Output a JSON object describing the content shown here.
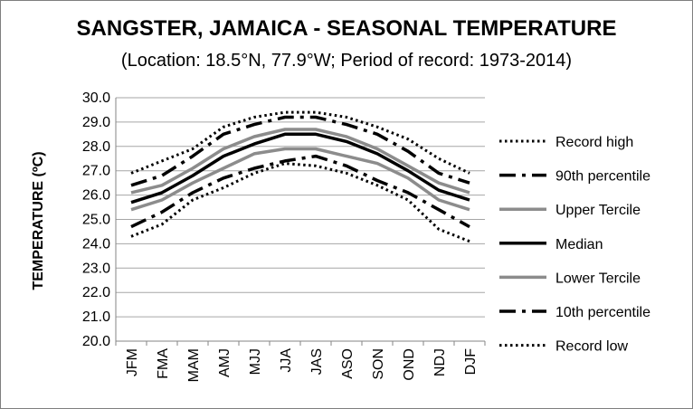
{
  "chart_data": {
    "type": "line",
    "title": "SANGSTER, JAMAICA - SEASONAL TEMPERATURE",
    "subtitle": "(Location: 18.5°N, 77.9°W; Period of record: 1973-2014)",
    "xlabel": "",
    "ylabel": "TEMPERATURE (ºC)",
    "ylim": [
      20.0,
      30.0
    ],
    "ytick_step": 1.0,
    "grid": true,
    "legend_position": "right",
    "categories": [
      "JFM",
      "FMA",
      "MAM",
      "AMJ",
      "MJJ",
      "JJA",
      "JAS",
      "ASO",
      "SON",
      "OND",
      "NDJ",
      "DJF"
    ],
    "series": [
      {
        "name": "Record high",
        "style": "dotted",
        "color": "#000000",
        "values": [
          26.9,
          27.4,
          27.9,
          28.8,
          29.2,
          29.4,
          29.4,
          29.2,
          28.8,
          28.3,
          27.5,
          26.9
        ]
      },
      {
        "name": "90th percentile",
        "style": "dashdot",
        "color": "#000000",
        "values": [
          26.4,
          26.8,
          27.6,
          28.5,
          28.9,
          29.2,
          29.2,
          28.9,
          28.5,
          27.8,
          26.9,
          26.5
        ]
      },
      {
        "name": "Upper Tercile",
        "style": "solid-gray",
        "color": "#8c8c8c",
        "values": [
          26.1,
          26.4,
          27.1,
          27.9,
          28.4,
          28.7,
          28.7,
          28.4,
          27.9,
          27.2,
          26.5,
          26.1
        ]
      },
      {
        "name": "Median",
        "style": "solid-black",
        "color": "#000000",
        "values": [
          25.7,
          26.1,
          26.8,
          27.6,
          28.1,
          28.5,
          28.5,
          28.2,
          27.7,
          27.0,
          26.2,
          25.8
        ]
      },
      {
        "name": "Lower Tercile",
        "style": "solid-gray",
        "color": "#8c8c8c",
        "values": [
          25.4,
          25.8,
          26.5,
          27.1,
          27.7,
          27.9,
          27.9,
          27.6,
          27.3,
          26.7,
          25.8,
          25.4
        ]
      },
      {
        "name": "10th percentile",
        "style": "dashdot",
        "color": "#000000",
        "values": [
          24.7,
          25.3,
          26.1,
          26.7,
          27.1,
          27.4,
          27.6,
          27.2,
          26.6,
          26.1,
          25.4,
          24.7
        ]
      },
      {
        "name": "Record low",
        "style": "dotted",
        "color": "#000000",
        "values": [
          24.3,
          24.8,
          25.8,
          26.3,
          26.9,
          27.3,
          27.2,
          26.9,
          26.4,
          25.8,
          24.6,
          24.1
        ]
      }
    ]
  }
}
